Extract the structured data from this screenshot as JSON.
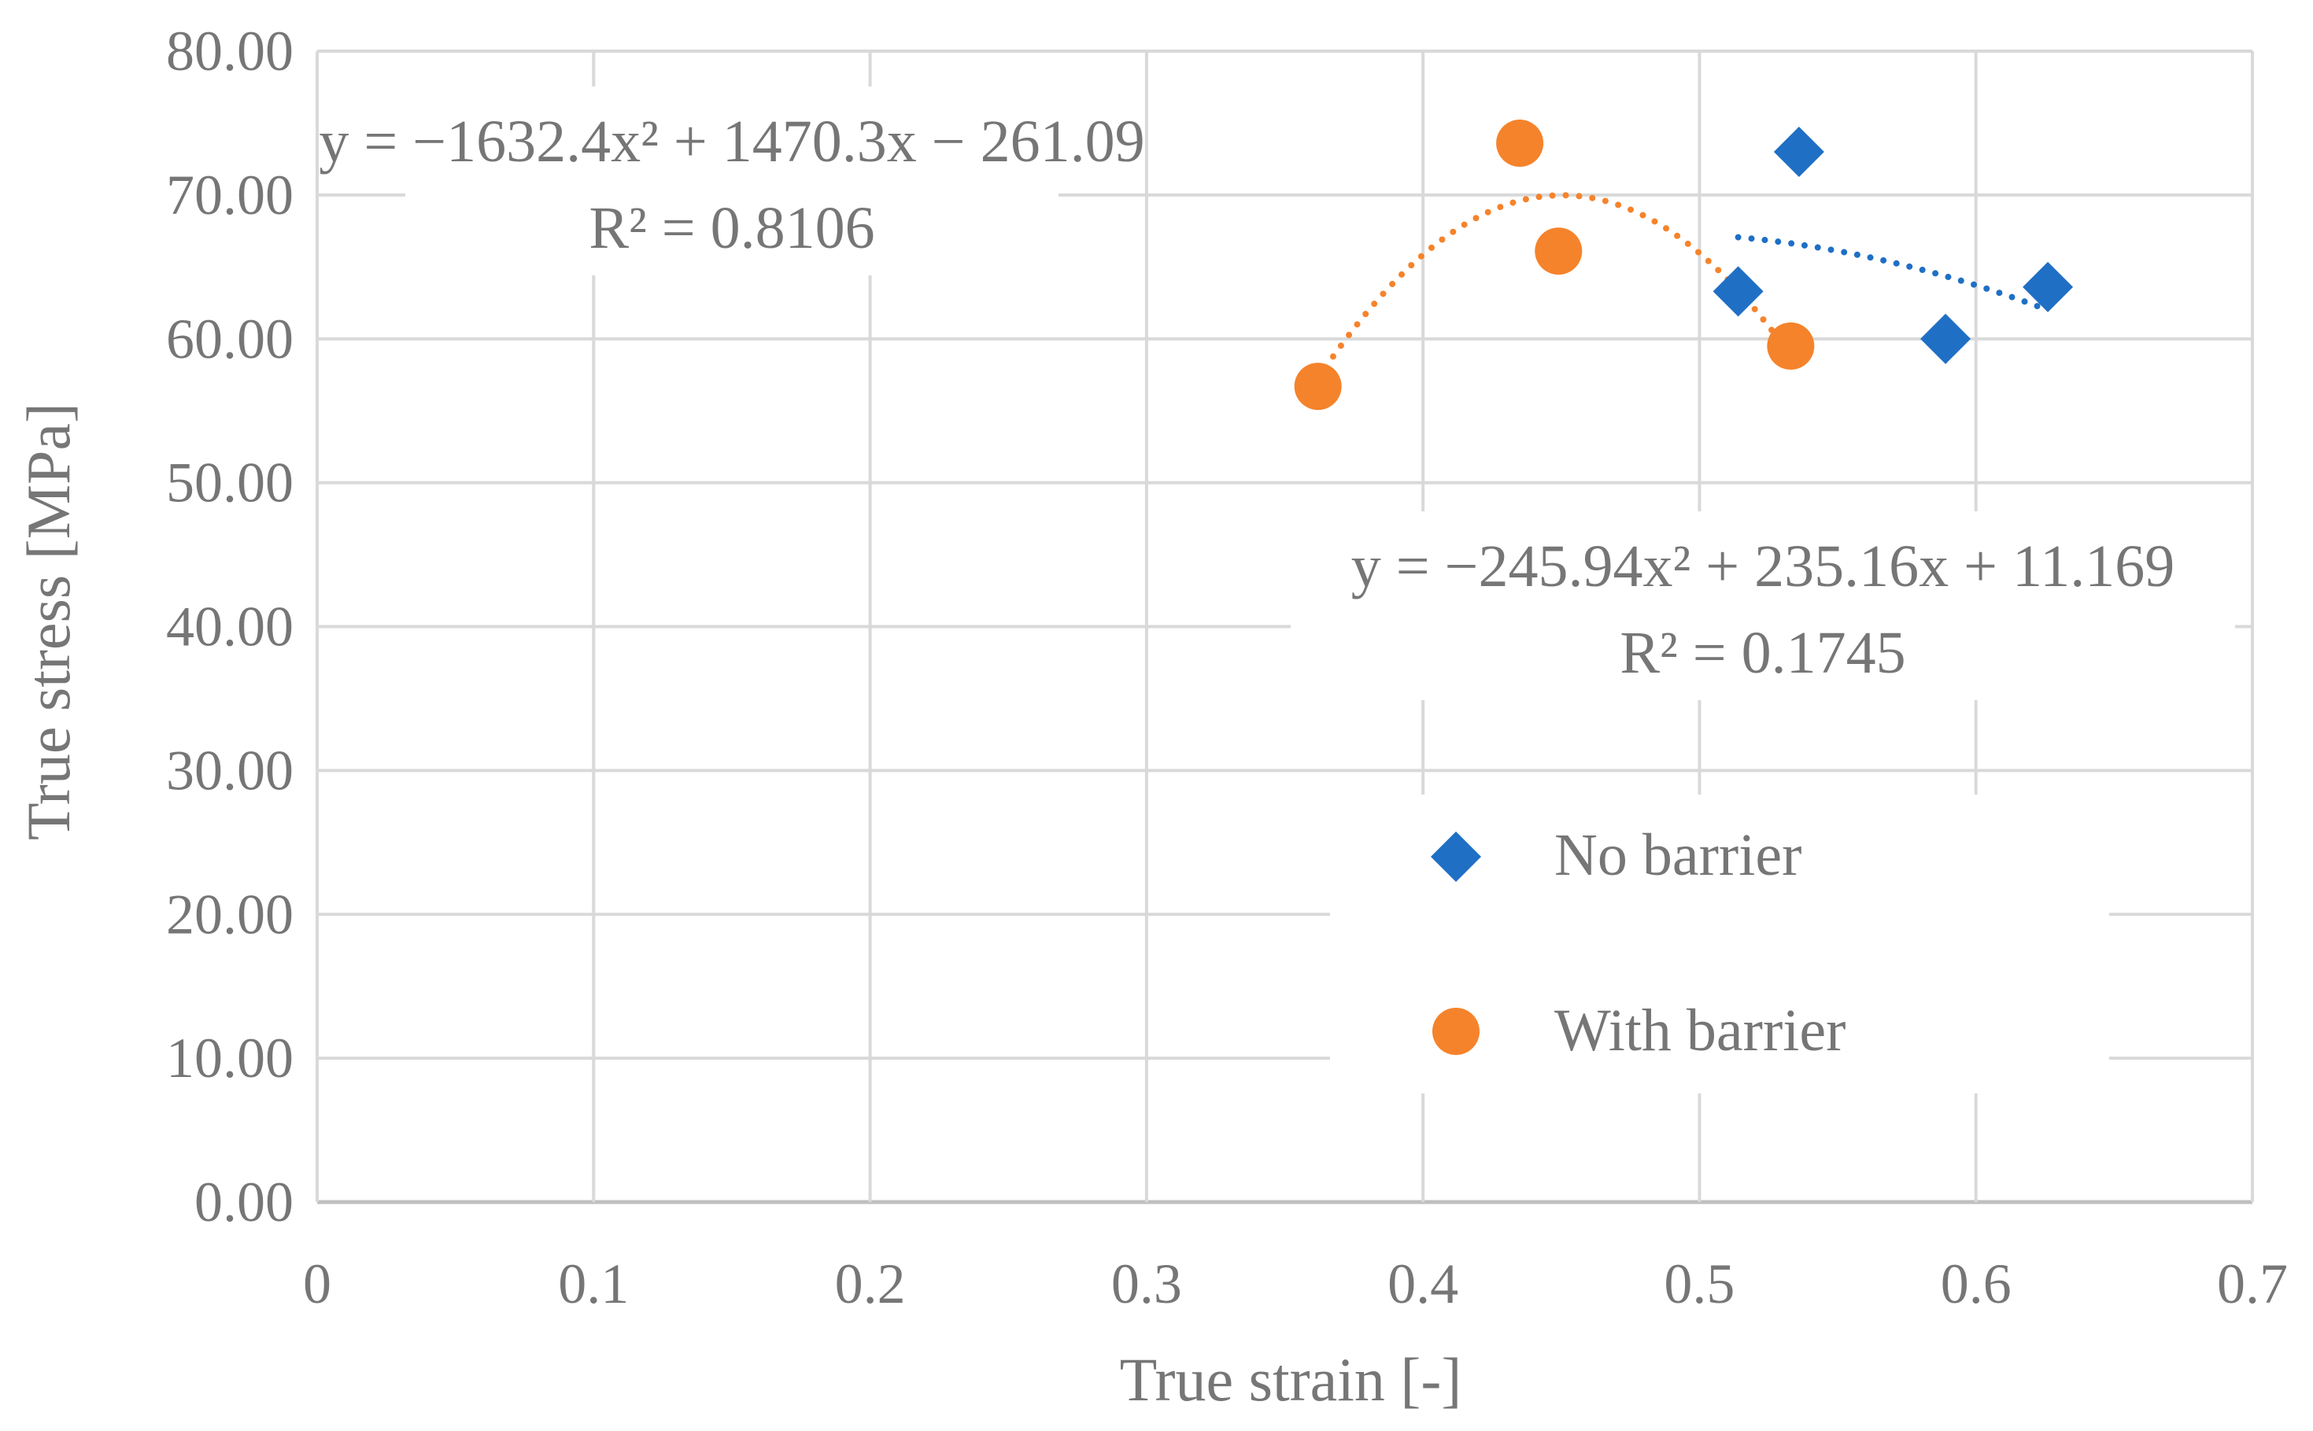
{
  "chart_data": {
    "type": "scatter",
    "title": "",
    "xlabel": "True strain [-]",
    "ylabel": "True stress [MPa]",
    "xlim": [
      0,
      0.7
    ],
    "ylim": [
      0,
      80
    ],
    "x_ticks": [
      0,
      0.1,
      0.2,
      0.3,
      0.4,
      0.5,
      0.6,
      0.7
    ],
    "x_tick_labels": [
      "0",
      "0.1",
      "0.2",
      "0.3",
      "0.4",
      "0.5",
      "0.6",
      "0.7"
    ],
    "y_ticks": [
      0,
      10,
      20,
      30,
      40,
      50,
      60,
      70,
      80
    ],
    "y_tick_labels": [
      "0.00",
      "10.00",
      "20.00",
      "30.00",
      "40.00",
      "50.00",
      "60.00",
      "70.00",
      "80.00"
    ],
    "grid": true,
    "legend_position": "lower-right",
    "series": [
      {
        "name": "No barrier",
        "marker": "diamond",
        "color": "#1f6fc5",
        "points": [
          {
            "x": 0.514,
            "y": 63.3
          },
          {
            "x": 0.536,
            "y": 73.0
          },
          {
            "x": 0.589,
            "y": 60.0
          },
          {
            "x": 0.626,
            "y": 63.6
          }
        ],
        "trendline": {
          "a": -245.94,
          "b": 235.16,
          "c": 11.169,
          "x_range": [
            0.514,
            0.626
          ]
        },
        "equation": "y = −245.94x² + 235.16x + 11.169",
        "r_squared": "R² = 0.1745"
      },
      {
        "name": "With barrier",
        "marker": "circle",
        "color": "#f5832b",
        "points": [
          {
            "x": 0.362,
            "y": 56.7
          },
          {
            "x": 0.435,
            "y": 73.6
          },
          {
            "x": 0.449,
            "y": 66.1
          },
          {
            "x": 0.533,
            "y": 59.5
          }
        ],
        "trendline": {
          "a": -1632.4,
          "b": 1470.3,
          "c": -261.09,
          "x_range": [
            0.362,
            0.533
          ]
        },
        "equation": "y = −1632.4x² + 1470.3x − 261.09",
        "r_squared": "R² = 0.8106"
      }
    ]
  },
  "colors": {
    "grid": "#d9d9d9",
    "axis": "#bfbfbf",
    "text": "#767676",
    "background": "#ffffff"
  }
}
